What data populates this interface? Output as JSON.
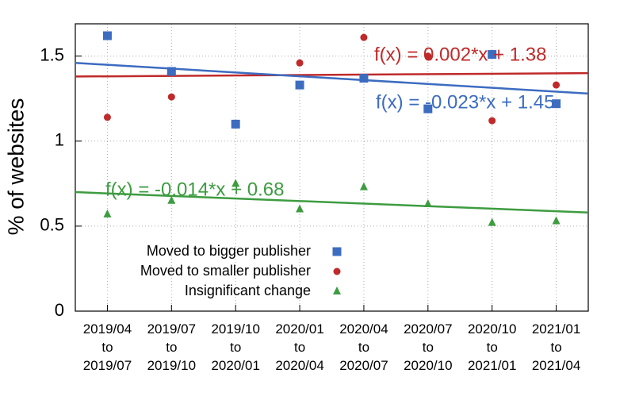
{
  "chart_data": {
    "type": "scatter",
    "y_label": "% of websites",
    "categories": [
      [
        "2019/04",
        "to",
        "2019/07"
      ],
      [
        "2019/07",
        "to",
        "2019/10"
      ],
      [
        "2019/10",
        "to",
        "2020/01"
      ],
      [
        "2020/01",
        "to",
        "2020/04"
      ],
      [
        "2020/04",
        "to",
        "2020/07"
      ],
      [
        "2020/07",
        "to",
        "2020/10"
      ],
      [
        "2020/10",
        "to",
        "2021/01"
      ],
      [
        "2021/01",
        "to",
        "2021/04"
      ]
    ],
    "series": [
      {
        "name": "Moved to bigger publisher",
        "color": "#3c6cc0",
        "marker": "square",
        "values": [
          1.62,
          1.41,
          1.1,
          1.33,
          1.37,
          1.19,
          1.51,
          1.22
        ]
      },
      {
        "name": "Moved to smaller publisher",
        "color": "#c02a2a",
        "marker": "circle",
        "values": [
          1.14,
          1.26,
          null,
          1.46,
          1.61,
          1.5,
          1.12,
          1.33
        ]
      },
      {
        "name": "Insignificant change",
        "color": "#3d9c40",
        "marker": "triangle",
        "values": [
          0.57,
          0.65,
          0.75,
          0.6,
          0.73,
          0.63,
          0.52,
          0.53
        ]
      }
    ],
    "trends": [
      {
        "label": "f(x) = 0.002*x + 1.38",
        "color": "#c02a2a",
        "values": [
          1.38,
          1.4
        ]
      },
      {
        "label": "f(x) = -0.023*x + 1.45",
        "color": "#3c6cc0",
        "values": [
          1.46,
          1.28
        ]
      },
      {
        "label": "f(x) = -0.014*x + 0.68",
        "color": "#3d9c40",
        "values": [
          0.7,
          0.58
        ]
      }
    ],
    "ylim": [
      0,
      1.69
    ],
    "yticks": [
      0,
      0.5,
      1,
      1.5
    ],
    "grid": true,
    "legend": "lower left"
  }
}
